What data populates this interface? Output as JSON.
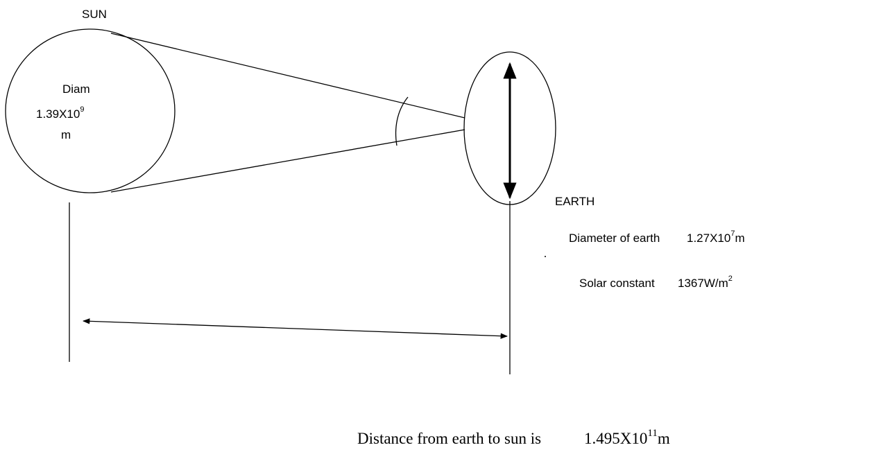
{
  "sun": {
    "label": "SUN",
    "diameter": {
      "label": "Diam",
      "base": "1.39X10",
      "exponent": "9",
      "unit": "m"
    }
  },
  "earth": {
    "label": "EARTH",
    "diameter": {
      "label": "Diameter of earth",
      "base": "1.27X10",
      "exponent": "7",
      "unit": "m"
    }
  },
  "solar_constant": {
    "label": "Solar constant",
    "base": "1367W/m",
    "exponent": "2"
  },
  "distance": {
    "label": "Distance from earth to sun is",
    "base": "1.495X10",
    "exponent": "11",
    "unit": "m"
  }
}
